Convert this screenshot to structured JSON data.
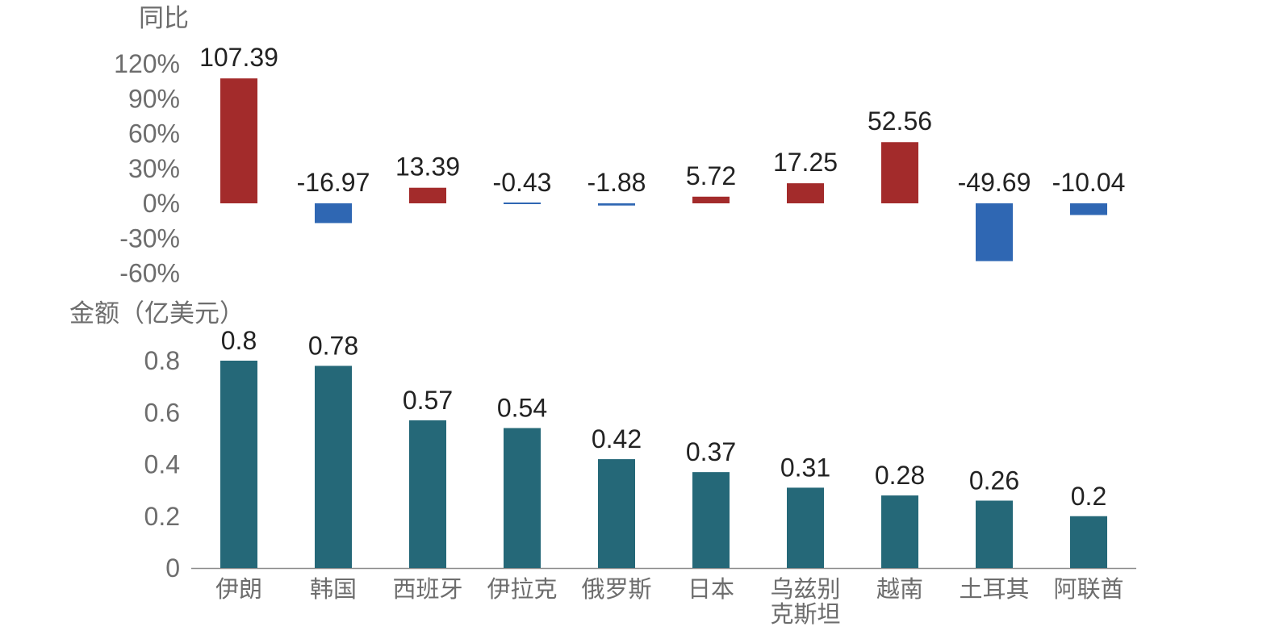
{
  "chart_data": [
    {
      "type": "bar",
      "ylabel": "同比",
      "categories": [
        "伊朗",
        "韩国",
        "西班牙",
        "伊拉克",
        "俄罗斯",
        "日本",
        "乌兹别克斯坦",
        "越南",
        "土耳其",
        "阿联酋"
      ],
      "values": [
        107.39,
        -16.97,
        13.39,
        -0.43,
        -1.88,
        5.72,
        17.25,
        52.56,
        -49.69,
        -10.04
      ],
      "value_labels": [
        "107.39",
        "-16.97",
        "13.39",
        "-0.43",
        "-1.88",
        "5.72",
        "17.25",
        "52.56",
        "-49.69",
        "-10.04"
      ],
      "ylim": [
        -60,
        120
      ],
      "yticks": [
        120,
        90,
        60,
        30,
        0,
        -30,
        -60
      ],
      "ytick_labels": [
        "120%",
        "90%",
        "60%",
        "30%",
        "0%",
        "-30%",
        "-60%"
      ],
      "colors": {
        "positive": "#a32b2b",
        "negative": "#2f67b3"
      },
      "grid": false
    },
    {
      "type": "bar",
      "ylabel": "金额（亿美元）",
      "categories": [
        "伊朗",
        "韩国",
        "西班牙",
        "伊拉克",
        "俄罗斯",
        "日本",
        "乌兹别克斯坦",
        "越南",
        "土耳其",
        "阿联酋"
      ],
      "category_labels": [
        [
          "伊朗"
        ],
        [
          "韩国"
        ],
        [
          "西班牙"
        ],
        [
          "伊拉克"
        ],
        [
          "俄罗斯"
        ],
        [
          "日本"
        ],
        [
          "乌兹别",
          "克斯坦"
        ],
        [
          "越南"
        ],
        [
          "土耳其"
        ],
        [
          "阿联酋"
        ]
      ],
      "values": [
        0.8,
        0.78,
        0.57,
        0.54,
        0.42,
        0.37,
        0.31,
        0.28,
        0.26,
        0.2
      ],
      "value_labels": [
        "0.8",
        "0.78",
        "0.57",
        "0.54",
        "0.42",
        "0.37",
        "0.31",
        "0.28",
        "0.26",
        "0.2"
      ],
      "ylim": [
        0,
        0.8
      ],
      "yticks": [
        0.8,
        0.6,
        0.4,
        0.2,
        0
      ],
      "ytick_labels": [
        "0.8",
        "0.6",
        "0.4",
        "0.2",
        "0"
      ],
      "colors": {
        "bar": "#256878",
        "axis": "#8c8c8c"
      },
      "grid": false
    }
  ]
}
